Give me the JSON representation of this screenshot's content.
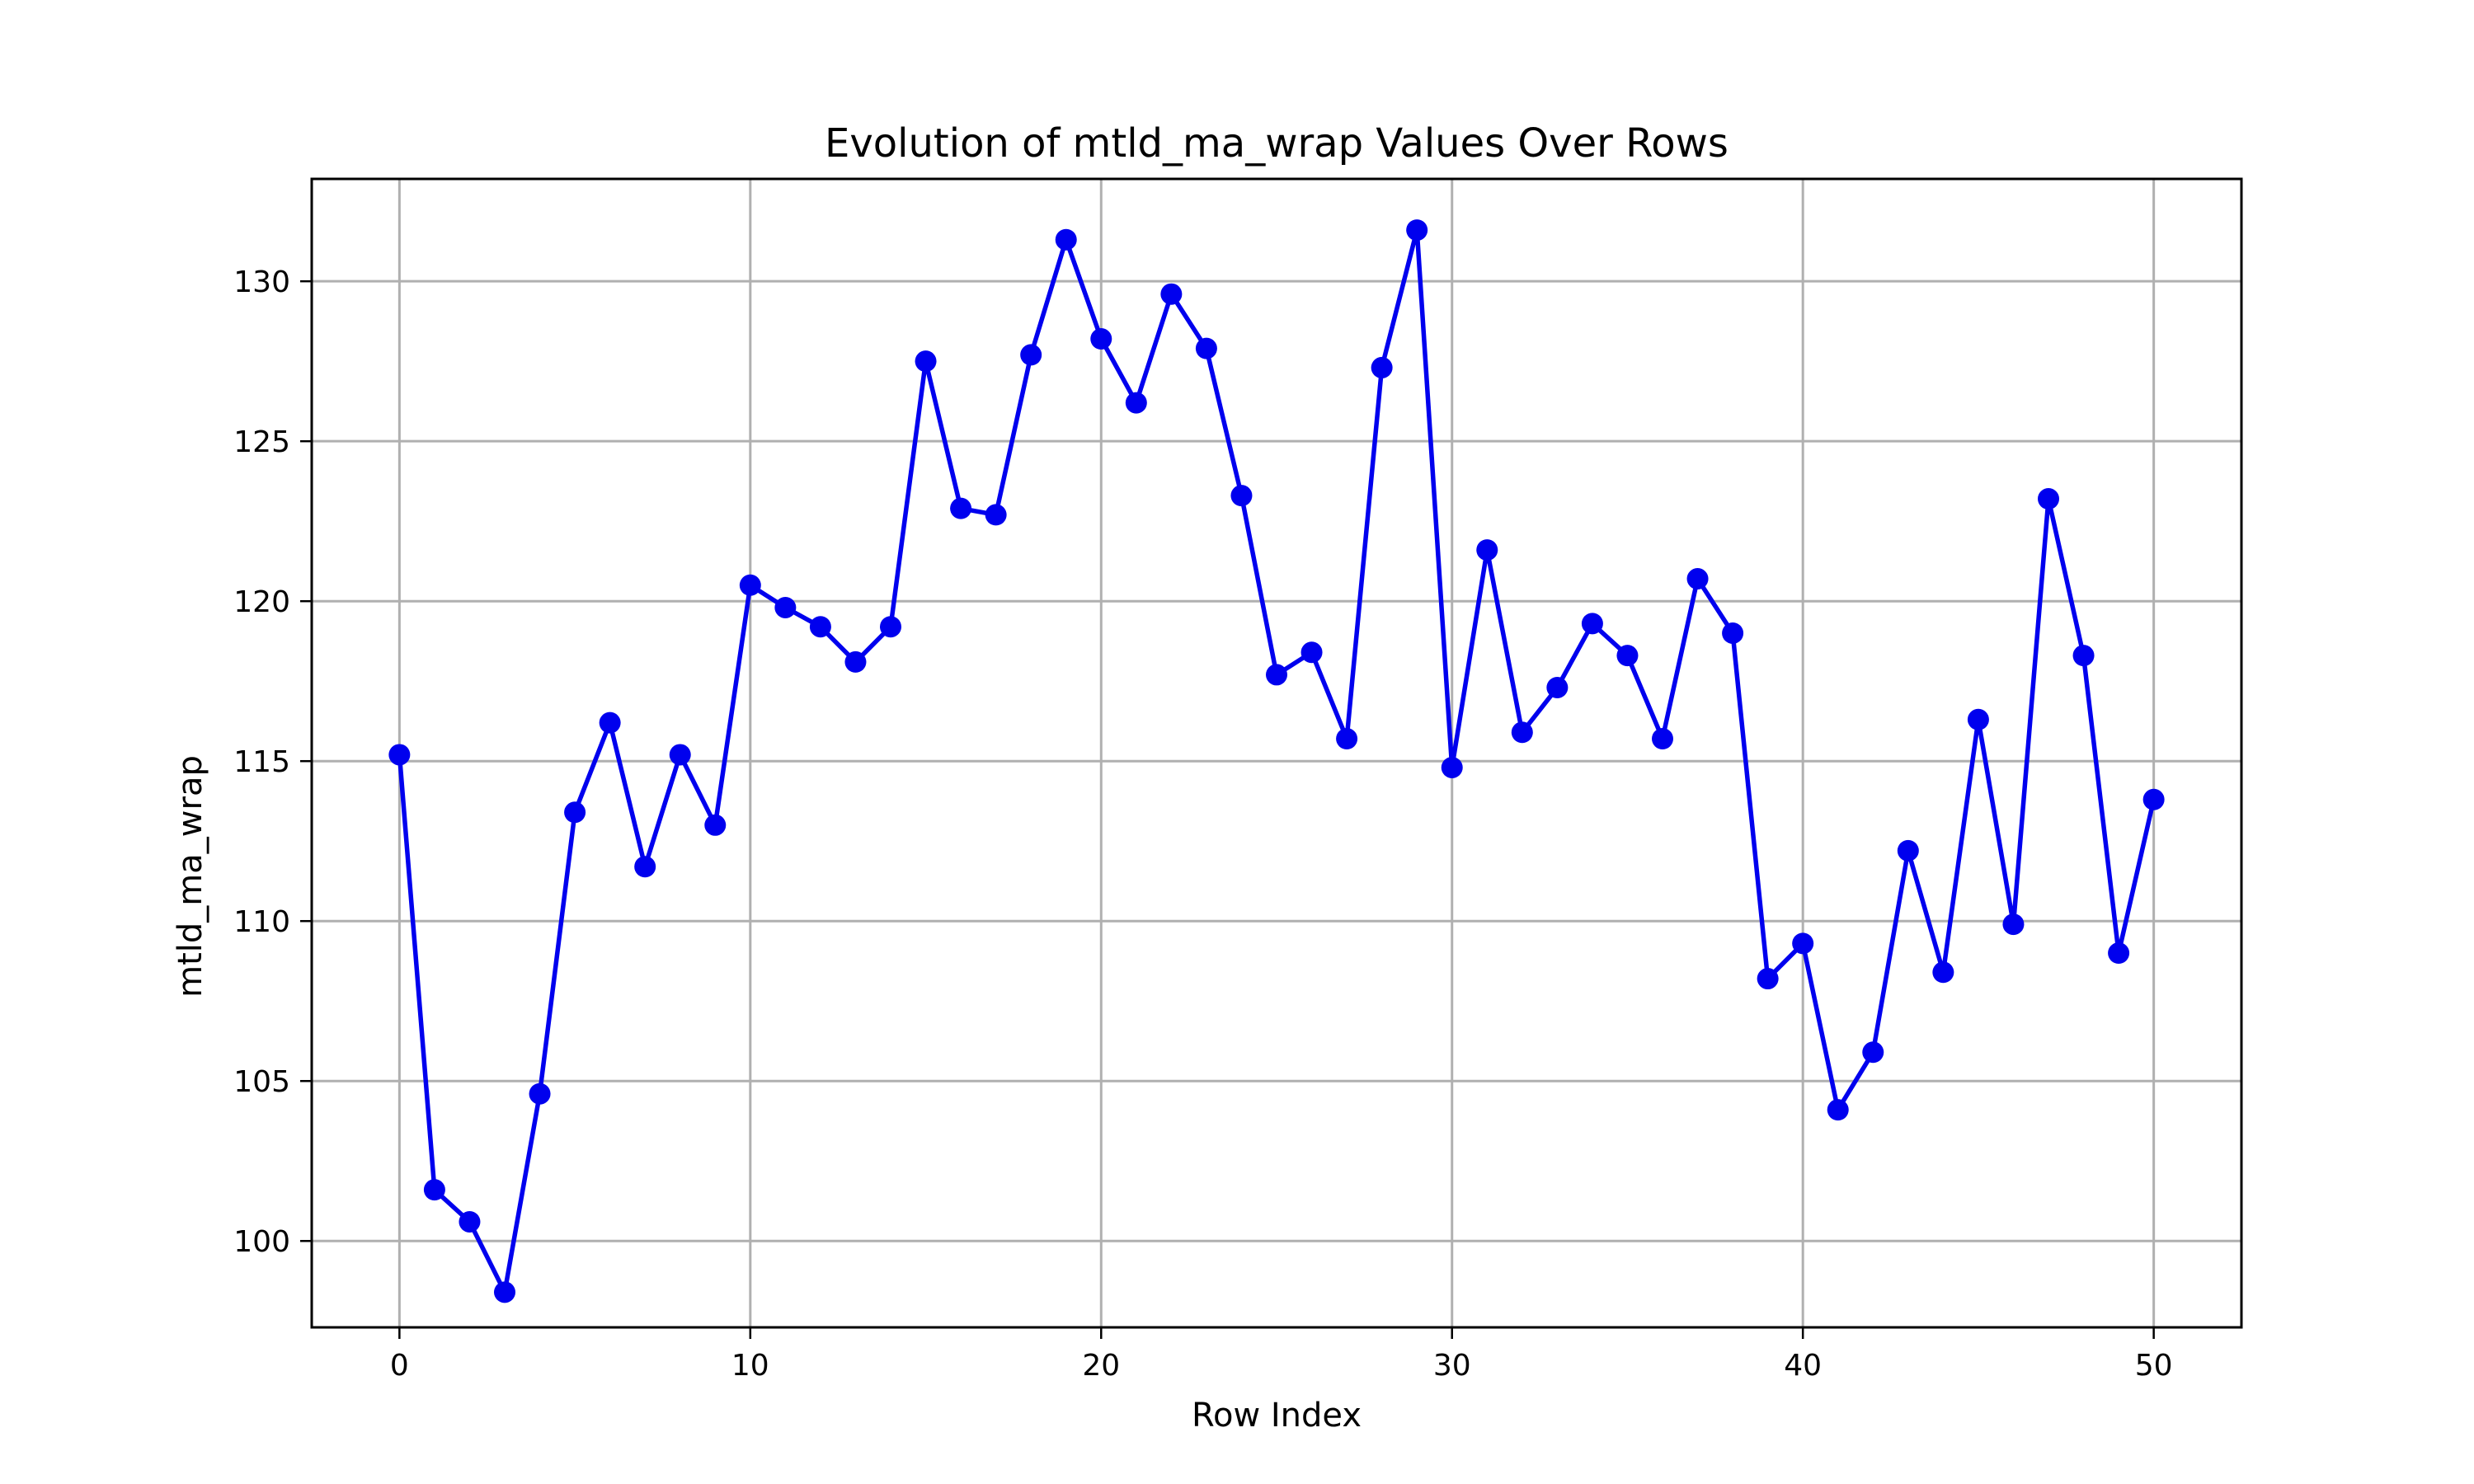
{
  "colors": {
    "series": "#0000ee",
    "grid": "#b0b0b0",
    "axes": "#000000",
    "background": "#ffffff"
  },
  "chart_data": {
    "type": "line",
    "title": "Evolution of mtld_ma_wrap Values Over Rows",
    "xlabel": "Row Index",
    "ylabel": "mtld_ma_wrap",
    "xlim": [
      -2.5,
      52.5
    ],
    "ylim": [
      97.3,
      133.2
    ],
    "xticks": [
      0,
      10,
      20,
      30,
      40,
      50
    ],
    "yticks": [
      100,
      105,
      110,
      115,
      120,
      125,
      130
    ],
    "grid": true,
    "marker": "circle",
    "series": [
      {
        "x": [
          0,
          1,
          2,
          3,
          4,
          5,
          6,
          7,
          8,
          9,
          10,
          11,
          12,
          13,
          14,
          15,
          16,
          17,
          18,
          19,
          20,
          21,
          22,
          23,
          24,
          25,
          26,
          27,
          28,
          29,
          30,
          31,
          32,
          33,
          34,
          35,
          36,
          37,
          38,
          39,
          40,
          41,
          42,
          43,
          44,
          45,
          46,
          47,
          48,
          49,
          50
        ],
        "y": [
          115.2,
          101.6,
          100.6,
          98.4,
          104.6,
          113.4,
          116.2,
          111.7,
          115.2,
          113.0,
          120.5,
          119.8,
          119.2,
          118.1,
          119.2,
          127.5,
          122.9,
          122.7,
          127.7,
          131.3,
          128.2,
          126.2,
          129.6,
          127.9,
          123.3,
          117.7,
          118.4,
          115.7,
          127.3,
          131.6,
          114.8,
          121.6,
          115.9,
          117.3,
          119.3,
          118.3,
          115.7,
          120.7,
          119.0,
          108.2,
          109.3,
          104.1,
          105.9,
          112.2,
          108.4,
          116.3,
          109.9,
          123.2,
          118.3,
          109.0,
          113.8
        ]
      }
    ]
  }
}
